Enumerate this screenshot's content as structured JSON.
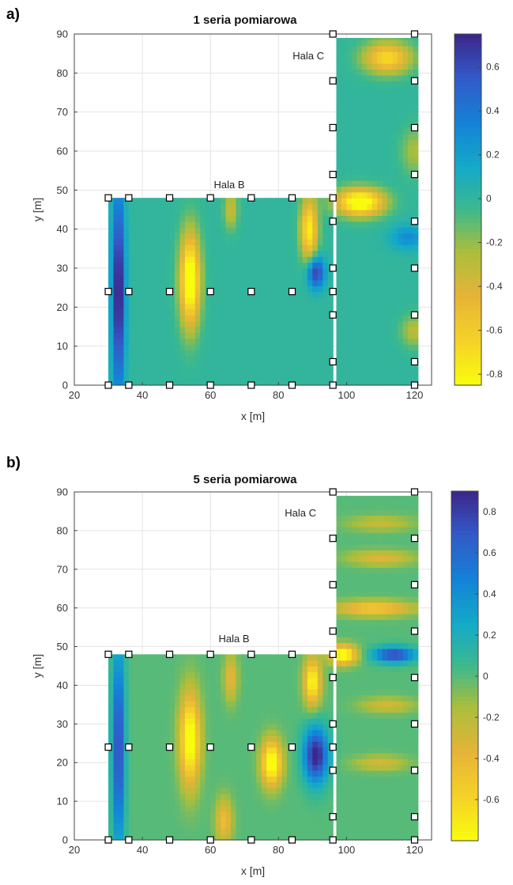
{
  "chart_data": [
    {
      "type": "heatmap",
      "panel_label": "a)",
      "title": "1 seria pomiarowa",
      "xlabel": "x [m]",
      "ylabel": "y [m]",
      "xlim": [
        20,
        125
      ],
      "ylim": [
        0,
        90
      ],
      "xticks": [
        "20",
        "40",
        "60",
        "80",
        "100",
        "120"
      ],
      "yticks": [
        "0",
        "10",
        "20",
        "30",
        "40",
        "50",
        "60",
        "70",
        "80",
        "90"
      ],
      "grid": true,
      "colorbar": {
        "range": [
          -0.85,
          0.75
        ],
        "ticks": [
          "0.6",
          "0.4",
          "0.2",
          "0",
          "-0.2",
          "-0.4",
          "-0.6",
          "-0.8"
        ]
      },
      "annotations": [
        "Hala B",
        "Hala C"
      ],
      "regions": [
        {
          "name": "Hala B",
          "x": [
            30,
            96
          ],
          "y": [
            0,
            48
          ]
        },
        {
          "name": "Hala C",
          "x": [
            97,
            121
          ],
          "y": [
            0,
            89
          ]
        }
      ],
      "sensors": [
        [
          30,
          0
        ],
        [
          36,
          0
        ],
        [
          48,
          0
        ],
        [
          60,
          0
        ],
        [
          72,
          0
        ],
        [
          84,
          0
        ],
        [
          96,
          0
        ],
        [
          30,
          24
        ],
        [
          36,
          24
        ],
        [
          48,
          24
        ],
        [
          60,
          24
        ],
        [
          72,
          24
        ],
        [
          84,
          24
        ],
        [
          96,
          24
        ],
        [
          30,
          48
        ],
        [
          36,
          48
        ],
        [
          48,
          48
        ],
        [
          60,
          48
        ],
        [
          72,
          48
        ],
        [
          84,
          48
        ],
        [
          96,
          48
        ],
        [
          96,
          6
        ],
        [
          96,
          18
        ],
        [
          96,
          30
        ],
        [
          96,
          42
        ],
        [
          96,
          54
        ],
        [
          96,
          66
        ],
        [
          96,
          78
        ],
        [
          96,
          90
        ],
        [
          120,
          0
        ],
        [
          120,
          6
        ],
        [
          120,
          18
        ],
        [
          120,
          30
        ],
        [
          120,
          42
        ],
        [
          120,
          54
        ],
        [
          120,
          66
        ],
        [
          120,
          78
        ],
        [
          120,
          90
        ]
      ],
      "field_features": [
        {
          "x": 33,
          "y": 24,
          "sx": 1.8,
          "sy": 26,
          "v": 0.85
        },
        {
          "x": 54,
          "y": 27,
          "sx": 3,
          "sy": 12,
          "v": -1.0
        },
        {
          "x": 66,
          "y": 45,
          "sx": 2,
          "sy": 5,
          "v": -0.35
        },
        {
          "x": 89,
          "y": 40,
          "sx": 2.5,
          "sy": 8,
          "v": -0.8
        },
        {
          "x": 91,
          "y": 29,
          "sx": 2.5,
          "sy": 4,
          "v": 0.7
        },
        {
          "x": 104,
          "y": 47,
          "sx": 7,
          "sy": 3.5,
          "v": -1.0
        },
        {
          "x": 112,
          "y": 84,
          "sx": 7,
          "sy": 4,
          "v": -0.7
        },
        {
          "x": 118,
          "y": 38,
          "sx": 5,
          "sy": 3,
          "v": 0.3
        },
        {
          "x": 120,
          "y": 60,
          "sx": 4,
          "sy": 6,
          "v": -0.25
        },
        {
          "x": 120,
          "y": 14,
          "sx": 4,
          "sy": 4,
          "v": -0.3
        }
      ]
    },
    {
      "type": "heatmap",
      "panel_label": "b)",
      "title": "5 seria pomiarowa",
      "xlabel": "x [m]",
      "ylabel": "y [m]",
      "xlim": [
        20,
        125
      ],
      "ylim": [
        0,
        90
      ],
      "xticks": [
        "20",
        "40",
        "60",
        "80",
        "100",
        "120"
      ],
      "yticks": [
        "0",
        "10",
        "20",
        "30",
        "40",
        "50",
        "60",
        "70",
        "80",
        "90"
      ],
      "grid": true,
      "colorbar": {
        "range": [
          -0.8,
          0.9
        ],
        "ticks": [
          "0.8",
          "0.6",
          "0.4",
          "0.2",
          "0",
          "-0.2",
          "-0.4",
          "-0.6"
        ]
      },
      "annotations": [
        "Hala B",
        "Hala C"
      ],
      "regions": [
        {
          "name": "Hala B",
          "x": [
            30,
            96
          ],
          "y": [
            0,
            48
          ]
        },
        {
          "name": "Hala C",
          "x": [
            97,
            121
          ],
          "y": [
            0,
            89
          ]
        }
      ],
      "sensors": [
        [
          30,
          0
        ],
        [
          36,
          0
        ],
        [
          48,
          0
        ],
        [
          60,
          0
        ],
        [
          72,
          0
        ],
        [
          84,
          0
        ],
        [
          96,
          0
        ],
        [
          30,
          24
        ],
        [
          36,
          24
        ],
        [
          48,
          24
        ],
        [
          60,
          24
        ],
        [
          72,
          24
        ],
        [
          84,
          24
        ],
        [
          96,
          24
        ],
        [
          30,
          48
        ],
        [
          36,
          48
        ],
        [
          48,
          48
        ],
        [
          60,
          48
        ],
        [
          72,
          48
        ],
        [
          84,
          48
        ],
        [
          96,
          48
        ],
        [
          96,
          6
        ],
        [
          96,
          18
        ],
        [
          96,
          30
        ],
        [
          96,
          42
        ],
        [
          96,
          54
        ],
        [
          96,
          66
        ],
        [
          96,
          78
        ],
        [
          96,
          90
        ],
        [
          120,
          0
        ],
        [
          120,
          6
        ],
        [
          120,
          18
        ],
        [
          120,
          30
        ],
        [
          120,
          42
        ],
        [
          120,
          54
        ],
        [
          120,
          66
        ],
        [
          120,
          78
        ],
        [
          120,
          90
        ]
      ],
      "field_features": [
        {
          "x": 33,
          "y": 24,
          "sx": 1.8,
          "sy": 26,
          "v": 0.8
        },
        {
          "x": 54,
          "y": 26,
          "sx": 3,
          "sy": 12,
          "v": -0.9
        },
        {
          "x": 78,
          "y": 20,
          "sx": 3,
          "sy": 6,
          "v": -0.9
        },
        {
          "x": 90,
          "y": 41,
          "sx": 2.5,
          "sy": 6,
          "v": -0.8
        },
        {
          "x": 91,
          "y": 22,
          "sx": 3.5,
          "sy": 7,
          "v": 0.95
        },
        {
          "x": 66,
          "y": 42,
          "sx": 2,
          "sy": 6,
          "v": -0.4
        },
        {
          "x": 64,
          "y": 5,
          "sx": 2.5,
          "sy": 6,
          "v": -0.45
        },
        {
          "x": 99,
          "y": 48,
          "sx": 4,
          "sy": 2.5,
          "v": -0.9
        },
        {
          "x": 114,
          "y": 48,
          "sx": 6,
          "sy": 2,
          "v": 0.8
        },
        {
          "x": 108,
          "y": 60,
          "sx": 12,
          "sy": 2,
          "v": -0.55
        },
        {
          "x": 110,
          "y": 73,
          "sx": 10,
          "sy": 2,
          "v": -0.35
        },
        {
          "x": 110,
          "y": 82,
          "sx": 10,
          "sy": 2,
          "v": -0.25
        },
        {
          "x": 112,
          "y": 35,
          "sx": 8,
          "sy": 2,
          "v": -0.3
        },
        {
          "x": 110,
          "y": 20,
          "sx": 8,
          "sy": 2,
          "v": -0.3
        }
      ]
    }
  ]
}
